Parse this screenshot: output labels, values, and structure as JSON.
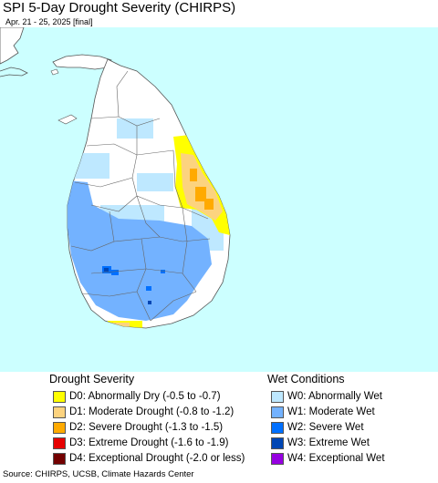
{
  "title": "SPI 5-Day Drought Severity (CHIRPS)",
  "subtitle": "Apr. 21 - 25, 2025 [final]",
  "map": {
    "ocean_color": "#ccffff",
    "land_color": "#ffffff",
    "border_color": "#555555"
  },
  "legend": {
    "drought": {
      "heading": "Drought Severity",
      "items": [
        {
          "label": "D0: Abnormally Dry (-0.5 to -0.7)",
          "color": "#ffff00"
        },
        {
          "label": "D1: Moderate Drought (-0.8 to -1.2)",
          "color": "#fcd37f"
        },
        {
          "label": "D2: Severe Drought (-1.3 to -1.5)",
          "color": "#ffaa00"
        },
        {
          "label": "D3: Extreme Drought (-1.6 to -1.9)",
          "color": "#e60000"
        },
        {
          "label": "D4: Exceptional Drought (-2.0 or less)",
          "color": "#730000"
        }
      ]
    },
    "wet": {
      "heading": "Wet Conditions",
      "items": [
        {
          "label": "W0: Abnormally Wet",
          "color": "#bee8ff"
        },
        {
          "label": "W1: Moderate Wet",
          "color": "#73b2ff"
        },
        {
          "label": "W2: Severe Wet",
          "color": "#0070ff"
        },
        {
          "label": "W3: Extreme Wet",
          "color": "#0046b4"
        },
        {
          "label": "W4: Exceptional Wet",
          "color": "#9600e1"
        }
      ]
    }
  },
  "source": "Source: CHIRPS, UCSB, Climate Hazards Center"
}
